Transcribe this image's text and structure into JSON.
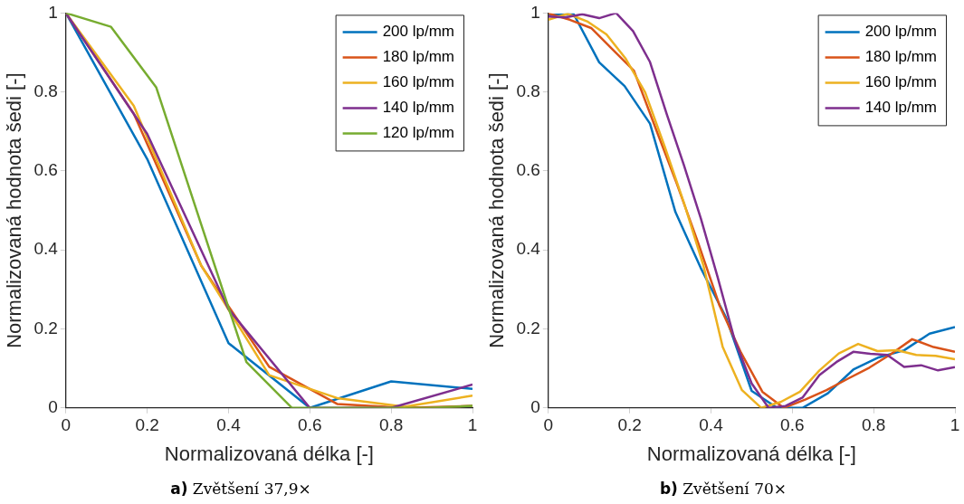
{
  "chart_data": [
    {
      "type": "line",
      "xlabel": "Normalizovaná délka [-]",
      "ylabel": "Normalizovaná hodnota šedi [-]",
      "annotations": [
        "a) Zvětšení 37,9×"
      ],
      "xlim": [
        0,
        1
      ],
      "ylim": [
        0,
        1
      ],
      "xticks": [
        {
          "value": 0,
          "label": "0"
        },
        {
          "value": 0.2,
          "label": "0.2"
        },
        {
          "value": 0.4,
          "label": "0.4"
        },
        {
          "value": 0.6,
          "label": "0.6"
        },
        {
          "value": 0.8,
          "label": "0.8"
        },
        {
          "value": 1,
          "label": "1"
        }
      ],
      "yticks": [
        {
          "value": 0,
          "label": "0"
        },
        {
          "value": 0.2,
          "label": "0.2"
        },
        {
          "value": 0.4,
          "label": "0.4"
        },
        {
          "value": 0.6,
          "label": "0.6"
        },
        {
          "value": 0.8,
          "label": "0.8"
        },
        {
          "value": 1,
          "label": "1"
        }
      ],
      "grid": false,
      "legend": "top right",
      "marker": "none",
      "line_style": "solid",
      "series": [
        {
          "name": "200 lp/mm",
          "color": "#0072bd",
          "x": [
            0,
            0.2,
            0.4,
            0.6,
            0.8,
            1
          ],
          "values": [
            1,
            0.63,
            0.164,
            0,
            0.067,
            0.048
          ]
        },
        {
          "name": "180 lp/mm",
          "color": "#d95319",
          "x": [
            0,
            0.167,
            0.333,
            0.5,
            0.667,
            0.833,
            1
          ],
          "values": [
            1,
            0.745,
            0.36,
            0.104,
            0.01,
            0,
            0.005
          ]
        },
        {
          "name": "160 lp/mm",
          "color": "#edb120",
          "x": [
            0,
            0.167,
            0.333,
            0.5,
            0.667,
            0.833,
            1
          ],
          "values": [
            1,
            0.765,
            0.36,
            0.083,
            0.025,
            0.003,
            0.031
          ]
        },
        {
          "name": "140 lp/mm",
          "color": "#7e2f8e",
          "x": [
            0,
            0.2,
            0.4,
            0.6,
            0.8,
            1
          ],
          "values": [
            1,
            0.694,
            0.25,
            0,
            0,
            0.059
          ]
        },
        {
          "name": "120 lp/mm",
          "color": "#77ac30",
          "x": [
            0,
            0.111,
            0.222,
            0.333,
            0.444,
            0.556,
            0.667,
            0.778,
            0.889,
            1
          ],
          "values": [
            1,
            0.965,
            0.812,
            0.464,
            0.116,
            0,
            0,
            0,
            0,
            0.005
          ]
        }
      ]
    },
    {
      "type": "line",
      "xlabel": "Normalizovaná délka [-]",
      "ylabel": "Normalizovaná hodnota šedi [-]",
      "annotations": [
        "b) Zvětšení 70×"
      ],
      "xlim": [
        0,
        1
      ],
      "ylim": [
        0,
        1
      ],
      "xticks": [
        {
          "value": 0,
          "label": "0"
        },
        {
          "value": 0.2,
          "label": "0.2"
        },
        {
          "value": 0.4,
          "label": "0.4"
        },
        {
          "value": 0.6,
          "label": "0.6"
        },
        {
          "value": 0.8,
          "label": "0.8"
        },
        {
          "value": 1,
          "label": "1"
        }
      ],
      "yticks": [
        {
          "value": 0,
          "label": "0"
        },
        {
          "value": 0.2,
          "label": "0.2"
        },
        {
          "value": 0.4,
          "label": "0.4"
        },
        {
          "value": 0.6,
          "label": "0.6"
        },
        {
          "value": 0.8,
          "label": "0.8"
        },
        {
          "value": 1,
          "label": "1"
        }
      ],
      "grid": false,
      "legend": "top right",
      "marker": "none",
      "line_style": "solid",
      "series": [
        {
          "name": "200 lp/mm",
          "color": "#0072bd",
          "x": [
            0,
            0.0625,
            0.125,
            0.1875,
            0.25,
            0.3125,
            0.375,
            0.4375,
            0.5,
            0.5625,
            0.625,
            0.6875,
            0.75,
            0.8125,
            0.875,
            0.9375,
            1
          ],
          "values": [
            0.995,
            0.997,
            0.875,
            0.815,
            0.72,
            0.496,
            0.354,
            0.228,
            0.043,
            0,
            0,
            0.037,
            0.097,
            0.128,
            0.146,
            0.188,
            0.205
          ]
        },
        {
          "name": "180 lp/mm",
          "color": "#d95319",
          "x": [
            0,
            0.0526,
            0.1053,
            0.1579,
            0.2105,
            0.2632,
            0.3158,
            0.3684,
            0.4211,
            0.4737,
            0.5263,
            0.5789,
            0.6316,
            0.6842,
            0.7368,
            0.7895,
            0.8421,
            0.8947,
            0.9474,
            1
          ],
          "values": [
            0.999,
            0.983,
            0.962,
            0.908,
            0.854,
            0.71,
            0.568,
            0.418,
            0.259,
            0.14,
            0.041,
            0,
            0.021,
            0.045,
            0.074,
            0.102,
            0.136,
            0.174,
            0.154,
            0.142
          ]
        },
        {
          "name": "160 lp/mm",
          "color": "#edb120",
          "x": [
            0,
            0.0476,
            0.0952,
            0.1429,
            0.1905,
            0.2381,
            0.2857,
            0.3333,
            0.381,
            0.4286,
            0.4762,
            0.5238,
            0.5714,
            0.619,
            0.6667,
            0.7143,
            0.7619,
            0.8095,
            0.8571,
            0.9048,
            0.9524,
            1
          ],
          "values": [
            0.983,
            0.998,
            0.979,
            0.946,
            0.884,
            0.799,
            0.663,
            0.52,
            0.362,
            0.155,
            0.045,
            0,
            0.015,
            0.041,
            0.095,
            0.138,
            0.162,
            0.144,
            0.146,
            0.134,
            0.132,
            0.123
          ]
        },
        {
          "name": "140 lp/mm",
          "color": "#7e2f8e",
          "x": [
            0,
            0.0417,
            0.0833,
            0.125,
            0.1667,
            0.2083,
            0.25,
            0.2917,
            0.3333,
            0.375,
            0.4167,
            0.4583,
            0.5,
            0.5417,
            0.5833,
            0.625,
            0.6667,
            0.7083,
            0.75,
            0.7917,
            0.8333,
            0.875,
            0.9167,
            0.9583,
            1
          ],
          "values": [
            0.991,
            0.989,
            0.997,
            0.987,
            1,
            0.954,
            0.876,
            0.742,
            0.615,
            0.48,
            0.33,
            0.172,
            0.062,
            0,
            0.005,
            0.026,
            0.083,
            0.116,
            0.142,
            0.137,
            0.134,
            0.104,
            0.108,
            0.095,
            0.103
          ]
        }
      ]
    }
  ]
}
